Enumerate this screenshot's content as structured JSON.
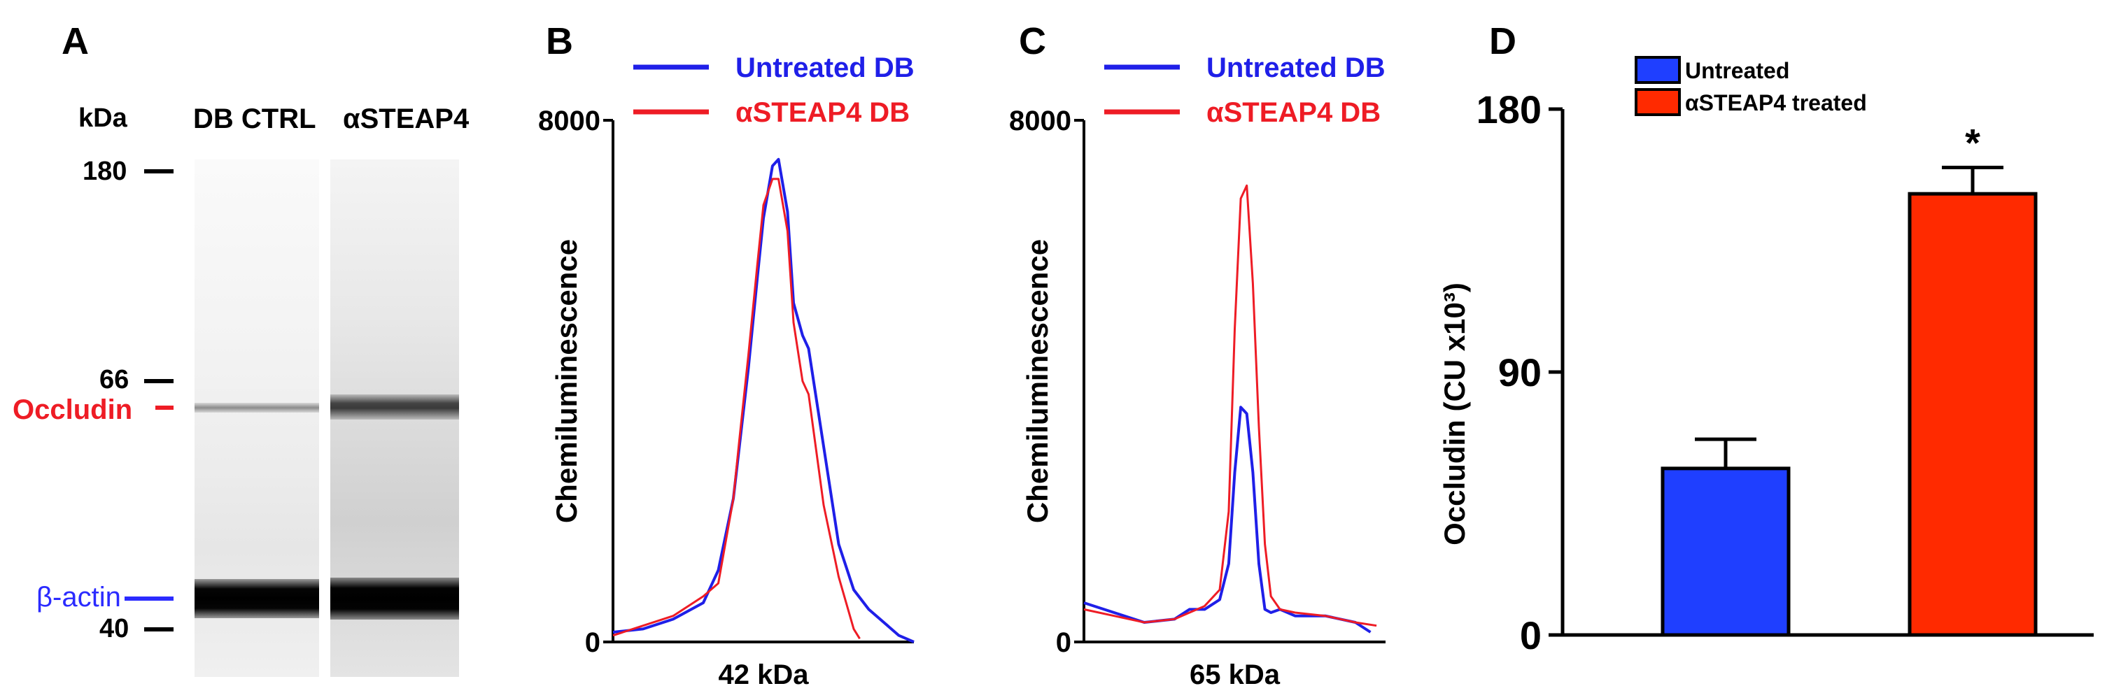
{
  "panels": {
    "a": "A",
    "b": "B",
    "c": "C",
    "d": "D"
  },
  "panel_a": {
    "unit_label": "kDa",
    "lane_labels": [
      "DB CTRL",
      "αSTEAP4"
    ],
    "markers": [
      "180",
      "66",
      "40"
    ],
    "band_labels": {
      "occludin": "Occludin",
      "beta_actin": "β-actin"
    },
    "colors": {
      "occludin": "#ee1c25",
      "beta_actin": "#2b2bff"
    }
  },
  "chart_data": [
    {
      "type": "line",
      "panel": "B",
      "ylabel": "Chemiluminescence",
      "xlabel": "42 kDa",
      "ylim": [
        0,
        8000
      ],
      "yticks": [
        "0",
        "8000"
      ],
      "legend": [
        "Untreated DB",
        "αSTEAP4 DB"
      ],
      "series": [
        {
          "name": "Untreated DB",
          "color": "#1f1fe8",
          "x": [
            0,
            10,
            20,
            30,
            35,
            40,
            42,
            45,
            48,
            50,
            53,
            55,
            58,
            60,
            63,
            65,
            70,
            75,
            80,
            85,
            90,
            95,
            100
          ],
          "y": [
            150,
            200,
            350,
            600,
            1100,
            2200,
            3000,
            4200,
            5600,
            6500,
            7300,
            7400,
            6600,
            5200,
            4700,
            4500,
            3000,
            1500,
            800,
            500,
            300,
            100,
            0
          ]
        },
        {
          "name": "αSTEAP4 DB",
          "color": "#ee1c25",
          "x": [
            0,
            10,
            20,
            30,
            35,
            40,
            42,
            45,
            48,
            50,
            53,
            55,
            58,
            60,
            63,
            65,
            70,
            75,
            80,
            82
          ],
          "y": [
            100,
            250,
            400,
            700,
            900,
            2200,
            3100,
            4400,
            5800,
            6700,
            7100,
            7100,
            6300,
            4900,
            4000,
            3800,
            2100,
            1000,
            200,
            50
          ]
        }
      ]
    },
    {
      "type": "line",
      "panel": "C",
      "ylabel": "Chemiluminescence",
      "xlabel": "65 kDa",
      "ylim": [
        0,
        8000
      ],
      "yticks": [
        "0",
        "8000"
      ],
      "legend": [
        "Untreated DB",
        "αSTEAP4 DB"
      ],
      "series": [
        {
          "name": "Untreated DB",
          "color": "#1f1fe8",
          "x": [
            0,
            10,
            20,
            30,
            35,
            40,
            45,
            48,
            50,
            52,
            54,
            56,
            58,
            60,
            62,
            65,
            70,
            80,
            90,
            95
          ],
          "y": [
            600,
            450,
            300,
            350,
            500,
            500,
            650,
            1200,
            2600,
            3600,
            3500,
            2600,
            1200,
            500,
            450,
            500,
            400,
            400,
            300,
            150
          ]
        },
        {
          "name": "αSTEAP4 DB",
          "color": "#ee1c25",
          "x": [
            0,
            10,
            20,
            30,
            35,
            40,
            45,
            48,
            50,
            52,
            54,
            56,
            58,
            60,
            62,
            65,
            70,
            80,
            90,
            97
          ],
          "y": [
            500,
            400,
            300,
            350,
            450,
            550,
            800,
            2000,
            4800,
            6800,
            7000,
            5500,
            3300,
            1500,
            700,
            500,
            450,
            400,
            300,
            250
          ]
        }
      ]
    },
    {
      "type": "bar",
      "panel": "D",
      "ylabel": "Occludin (CU x10³)",
      "ylim": [
        0,
        180
      ],
      "yticks": [
        "0",
        "90",
        "180"
      ],
      "categories": [
        "Untreated",
        "αSTEAP4 treated"
      ],
      "values": [
        57,
        151
      ],
      "errors": [
        10,
        9
      ],
      "colors": [
        "#1f3fff",
        "#ff2a00"
      ],
      "significance": [
        "",
        "*"
      ],
      "legend": [
        "Untreated",
        "αSTEAP4 treated"
      ]
    }
  ]
}
